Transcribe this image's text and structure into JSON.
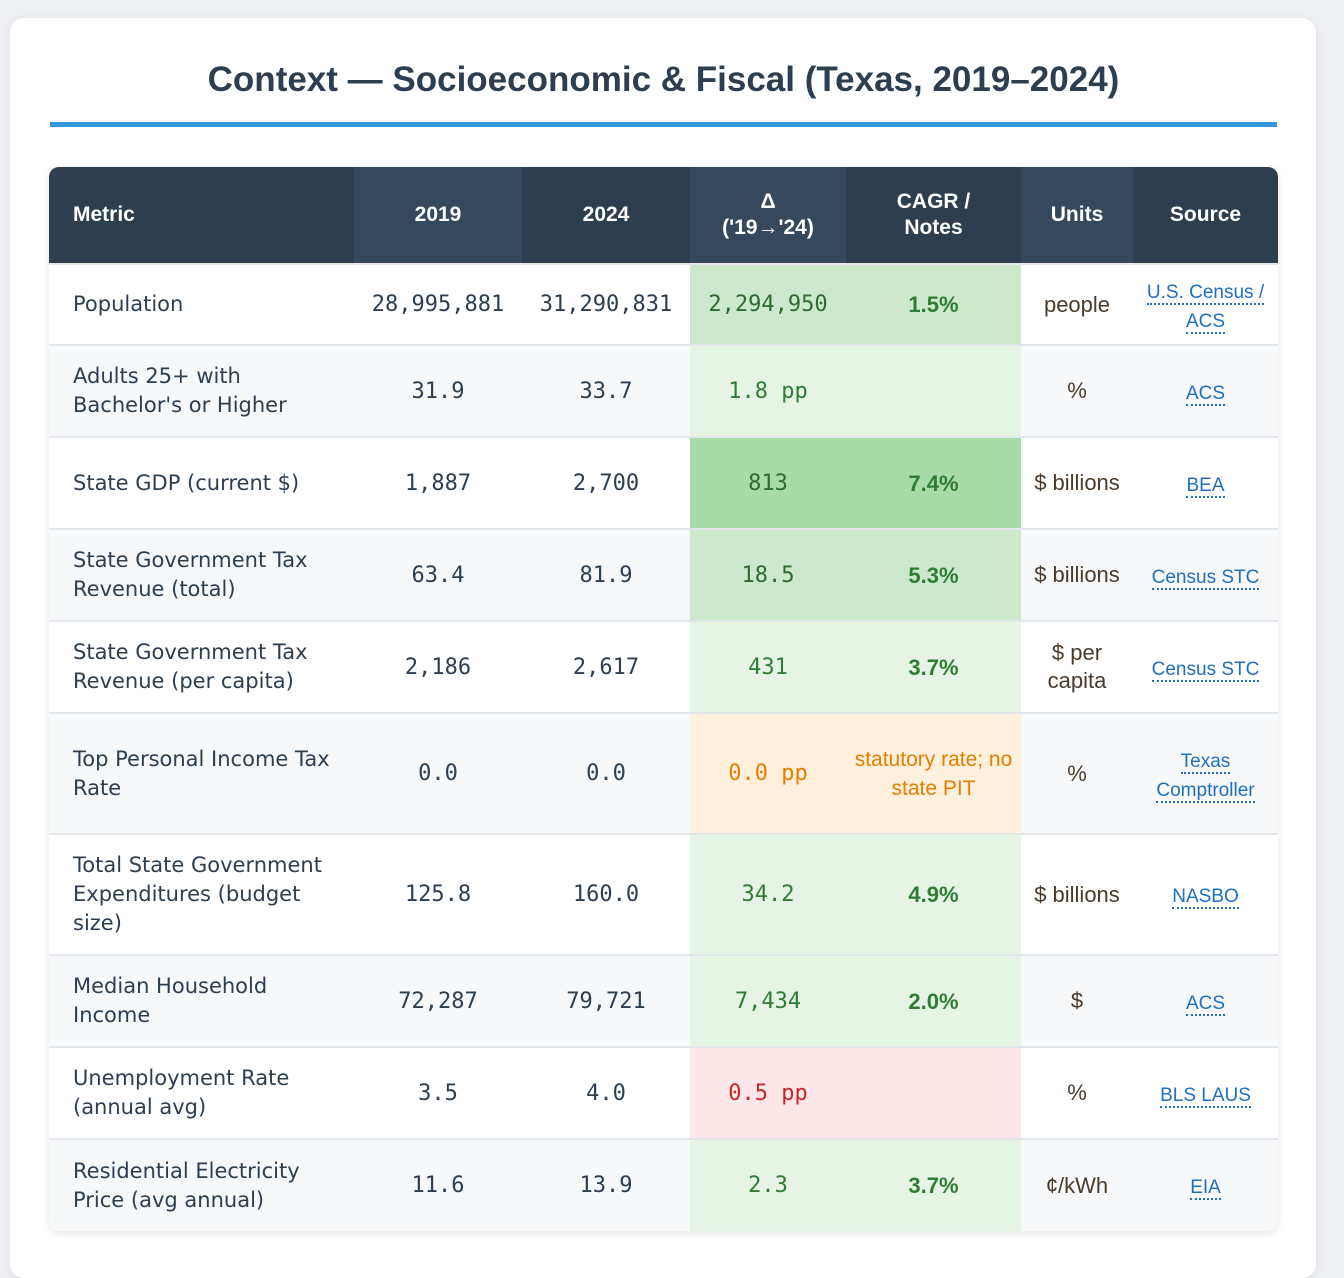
{
  "title": "Context — Socioeconomic & Fiscal (Texas, 2019–2024)",
  "colors": {
    "header_bg": "#2c3e50",
    "accent_rule": "#3498db",
    "link": "#1f6fc0"
  },
  "headers": {
    "metric": "Metric",
    "y2019": "2019",
    "y2024": "2024",
    "delta_line1": "Δ",
    "delta_line2": "('19→'24)",
    "cagr_line1": "CAGR /",
    "cagr_line2": "Notes",
    "units": "Units",
    "source": "Source"
  },
  "rows": [
    {
      "metric": "Population",
      "v2019": "28,995,881",
      "v2024": "31,290,831",
      "delta": "2,294,950",
      "cagr": "1.5%",
      "units": "people",
      "source": "U.S. Census / ACS"
    },
    {
      "metric": "Adults 25+ with Bachelor's or Higher",
      "v2019": "31.9",
      "v2024": "33.7",
      "delta": "1.8 pp",
      "cagr": "",
      "units": "%",
      "source": "ACS"
    },
    {
      "metric": "State GDP (current $)",
      "v2019": "1,887",
      "v2024": "2,700",
      "delta": "813",
      "cagr": "7.4%",
      "units": "$ billions",
      "source": "BEA"
    },
    {
      "metric": "State Government Tax Revenue (total)",
      "v2019": "63.4",
      "v2024": "81.9",
      "delta": "18.5",
      "cagr": "5.3%",
      "units": "$ billions",
      "source": "Census STC"
    },
    {
      "metric": "State Government Tax Revenue (per capita)",
      "v2019": "2,186",
      "v2024": "2,617",
      "delta": "431",
      "cagr": "3.7%",
      "units": "$ per capita",
      "source": "Census STC"
    },
    {
      "metric": "Top Personal Income Tax Rate",
      "v2019": "0.0",
      "v2024": "0.0",
      "delta": "0.0 pp",
      "cagr": "statutory rate; no state PIT",
      "units": "%",
      "source": "Texas Comptroller"
    },
    {
      "metric": "Total State Government Expenditures (budget size)",
      "v2019": "125.8",
      "v2024": "160.0",
      "delta": "34.2",
      "cagr": "4.9%",
      "units": "$ billions",
      "source": "NASBO"
    },
    {
      "metric": "Median Household Income",
      "v2019": "72,287",
      "v2024": "79,721",
      "delta": "7,434",
      "cagr": "2.0%",
      "units": "$",
      "source": "ACS"
    },
    {
      "metric": "Unemployment Rate (annual avg)",
      "v2019": "3.5",
      "v2024": "4.0",
      "delta": "0.5 pp",
      "cagr": "",
      "units": "%",
      "source": "BLS LAUS"
    },
    {
      "metric": "Residential Electricity Price (avg annual)",
      "v2019": "11.6",
      "v2024": "13.9",
      "delta": "2.3",
      "cagr": "3.7%",
      "units": "¢/kWh",
      "source": "EIA"
    }
  ]
}
